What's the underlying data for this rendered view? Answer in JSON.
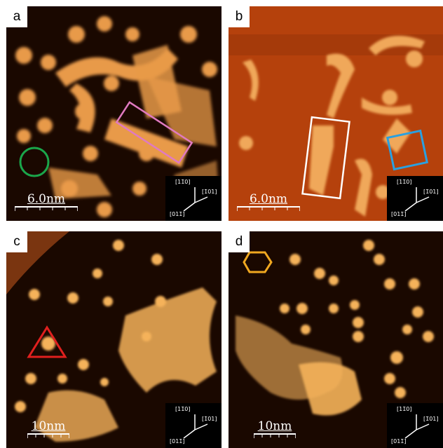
{
  "panels": [
    {
      "letter": "a",
      "scale_label": "6.0nm"
    },
    {
      "letter": "b",
      "scale_label": "6.0nm"
    },
    {
      "letter": "c",
      "scale_label": "10nm"
    },
    {
      "letter": "d",
      "scale_label": "10nm"
    }
  ],
  "inset_labels": {
    "dir_top": "[11̄0]",
    "dir_right": "[1̄01]",
    "dir_bottom": "[011̄]"
  },
  "colors": {
    "background_dark": "#1a0800",
    "terrace_b": "#b5410c",
    "molecule_bright": "#f5b25a",
    "marker_green": "#1aa64a",
    "marker_pink": "#e07ac0",
    "marker_white": "#ffffff",
    "marker_blue": "#2aa0e0",
    "marker_red": "#e0201e",
    "marker_orange": "#f0a820"
  }
}
